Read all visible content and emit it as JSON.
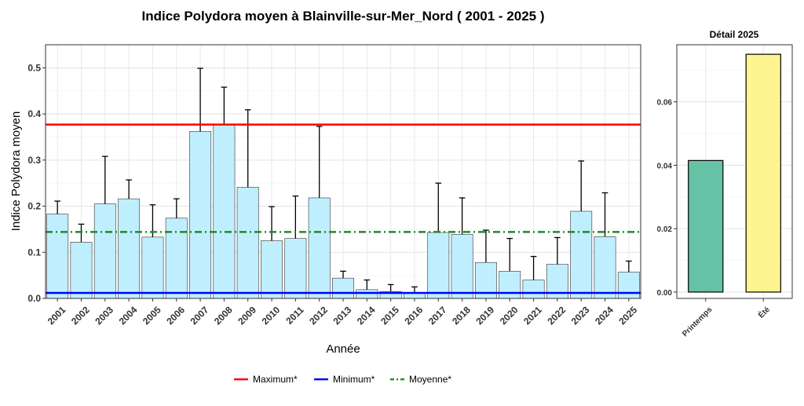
{
  "chart_data": [
    {
      "type": "bar",
      "title": "Indice Polydora moyen à Blainville-sur-Mer_Nord ( 2001 - 2025 )",
      "xlabel": "Année",
      "ylabel": "Indice Polydora moyen",
      "ylim": [
        0,
        0.55
      ],
      "yticks": [
        0.0,
        0.1,
        0.2,
        0.3,
        0.4,
        0.5
      ],
      "ytick_labels": [
        "0.0",
        "0.1",
        "0.2",
        "0.3",
        "0.4",
        "0.5"
      ],
      "grid": true,
      "categories": [
        "2001",
        "2002",
        "2003",
        "2004",
        "2005",
        "2006",
        "2007",
        "2008",
        "2009",
        "2010",
        "2011",
        "2012",
        "2013",
        "2014",
        "2015",
        "2016",
        "2017",
        "2018",
        "2019",
        "2020",
        "2021",
        "2022",
        "2023",
        "2024",
        "2025"
      ],
      "values": [
        0.183,
        0.122,
        0.205,
        0.216,
        0.133,
        0.174,
        0.362,
        0.376,
        0.241,
        0.125,
        0.13,
        0.218,
        0.044,
        0.019,
        0.015,
        0.012,
        0.143,
        0.139,
        0.078,
        0.059,
        0.04,
        0.074,
        0.189,
        0.134,
        0.057
      ],
      "error_upper": [
        0.211,
        0.161,
        0.308,
        0.257,
        0.203,
        0.216,
        0.499,
        0.458,
        0.409,
        0.199,
        0.222,
        0.373,
        0.059,
        0.04,
        0.03,
        0.025,
        0.25,
        0.218,
        0.148,
        0.13,
        0.091,
        0.132,
        0.298,
        0.229,
        0.081
      ],
      "bar_color": "#bfefff",
      "reference_lines": [
        {
          "name": "Maximum*",
          "value": 0.377,
          "color": "#ff0000",
          "style": "solid"
        },
        {
          "name": "Minimum*",
          "value": 0.012,
          "color": "#0000ff",
          "style": "solid"
        },
        {
          "name": "Moyenne*",
          "value": 0.144,
          "color": "#228b22",
          "style": "dashdot"
        }
      ],
      "legend_position": "bottom"
    },
    {
      "type": "bar",
      "title": "Détail 2025",
      "ylim": [
        -0.002,
        0.078
      ],
      "yticks": [
        0.0,
        0.02,
        0.04,
        0.06
      ],
      "ytick_labels": [
        "0.00",
        "0.02",
        "0.04",
        "0.06"
      ],
      "grid": true,
      "categories": [
        "Printemps",
        "Été"
      ],
      "values": [
        0.0415,
        0.075
      ],
      "colors": [
        "#66c2a5",
        "#fff590"
      ]
    }
  ]
}
